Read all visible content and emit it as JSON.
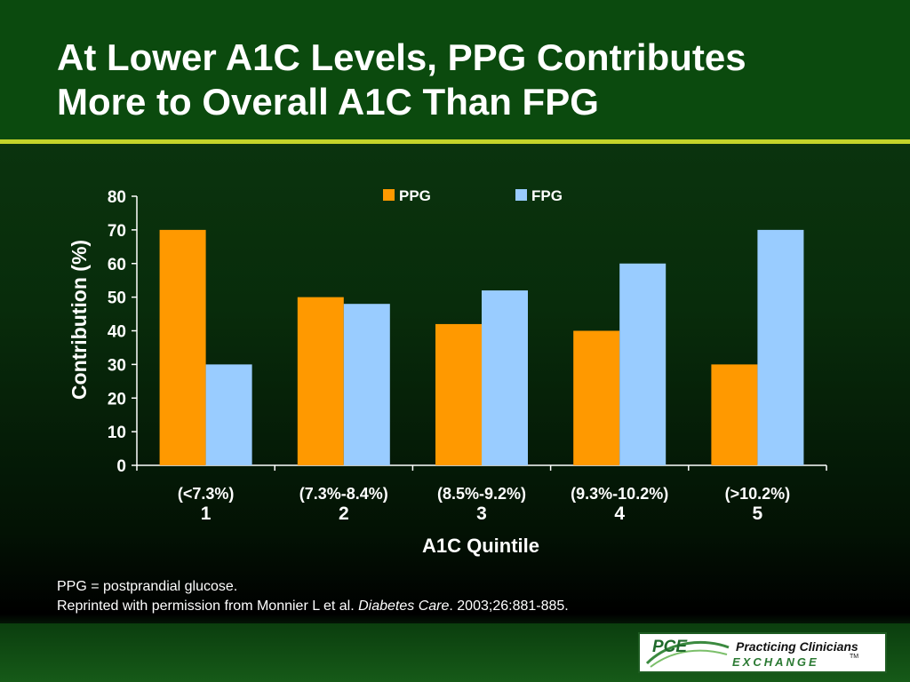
{
  "slide": {
    "title_lines": [
      "At Lower A1C Levels, PPG Contributes",
      "More to Overall A1C Than FPG"
    ],
    "footnote_line1": "PPG = postprandial glucose.",
    "footnote_line2_prefix": "Reprinted with permission from Monnier L et al. ",
    "footnote_line2_journal": "Diabetes Care",
    "footnote_line2_suffix": ". 2003;26:881-885.",
    "logo": {
      "mark": "PCE",
      "name": "Practicing Clinicians",
      "sub": "EXCHANGE",
      "tm": "TM"
    }
  },
  "colors": {
    "ppg": "#ff9900",
    "fpg": "#99ccff",
    "axis": "#ffffff",
    "accent_rule": "#c4d42a"
  },
  "chart_data": {
    "type": "bar",
    "categories": [
      "1",
      "2",
      "3",
      "4",
      "5"
    ],
    "category_ranges": [
      "(<7.3%)",
      "(7.3%-8.4%)",
      "(8.5%-9.2%)",
      "(9.3%-10.2%)",
      "(>10.2%)"
    ],
    "series": [
      {
        "name": "PPG",
        "values": [
          70,
          50,
          42,
          40,
          30
        ]
      },
      {
        "name": "FPG",
        "values": [
          30,
          48,
          52,
          60,
          70
        ]
      }
    ],
    "xlabel": "A1C Quintile",
    "ylabel": "Contribution (%)",
    "ylim": [
      0,
      80
    ],
    "yticks": [
      "0",
      "10",
      "20",
      "30",
      "40",
      "50",
      "60",
      "70",
      "80"
    ],
    "grid": false,
    "legend_position": "top"
  }
}
